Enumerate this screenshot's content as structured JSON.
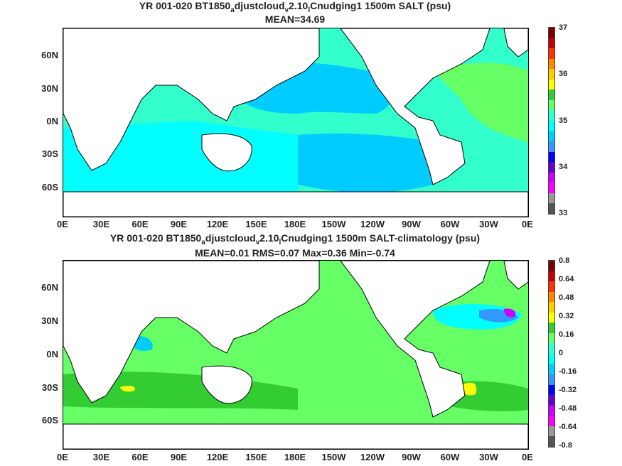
{
  "top": {
    "title_line1_parts": [
      "YR 001-020 BT1850",
      "a",
      "djustcloud",
      "v",
      "2.10",
      "l",
      "Cnudging1 1500m SALT (psu)"
    ],
    "title_line2": "MEAN=34.69",
    "colorbar_labels": [
      "37",
      "36",
      "35",
      "34",
      "33"
    ],
    "colorbar_colors": [
      "#7a0000",
      "#c80000",
      "#ff3300",
      "#ff8800",
      "#ffcc00",
      "#ffff00",
      "#33cc33",
      "#66ff66",
      "#33ffcc",
      "#00ffff",
      "#00ccff",
      "#3399ff",
      "#0000ff",
      "#6600cc",
      "#cc00ff",
      "#ff00ff",
      "#999999",
      "#555555"
    ]
  },
  "bottom": {
    "title_line1_parts": [
      "YR 001-020 BT1850",
      "a",
      "djustcloud",
      "v",
      "2.10",
      "l",
      "Cnudging1 1500m SALT-climatology (psu)"
    ],
    "title_line2": "MEAN=0.01   RMS=0.07   Max=0.36   Min=-0.74",
    "colorbar_labels": [
      "0.8",
      "0.64",
      "0.48",
      "0.32",
      "0.16",
      "0",
      "-0.16",
      "-0.32",
      "-0.48",
      "-0.64",
      "-0.8"
    ],
    "colorbar_colors": [
      "#7a0000",
      "#c80000",
      "#ff3300",
      "#ff8800",
      "#ffcc00",
      "#ffff00",
      "#33cc33",
      "#66ff66",
      "#33ffcc",
      "#00ffff",
      "#00ccff",
      "#3399ff",
      "#0000ff",
      "#6600cc",
      "#cc00ff",
      "#ff00ff",
      "#999999",
      "#555555"
    ]
  },
  "axes": {
    "y_labels": [
      "60N",
      "30N",
      "0N",
      "30S",
      "60S"
    ],
    "x_labels": [
      "0E",
      "30E",
      "60E",
      "90E",
      "120E",
      "150E",
      "180E",
      "150W",
      "120W",
      "90W",
      "60W",
      "30W",
      "0E"
    ]
  },
  "chart_data": [
    {
      "type": "heatmap",
      "title": "YR 001-020 BT1850_adjustcloud_v2.10_lCnudging1 1500m SALT (psu)",
      "subtitle": "MEAN=34.69",
      "color_range": [
        33,
        37
      ],
      "colorbar_ticks": [
        33,
        34,
        35,
        36,
        37
      ],
      "x_ticks": [
        "0E",
        "30E",
        "60E",
        "90E",
        "120E",
        "150E",
        "180E",
        "150W",
        "120W",
        "90W",
        "60W",
        "30W",
        "0E"
      ],
      "y_ticks": [
        "60N",
        "30N",
        "0N",
        "30S",
        "60S"
      ],
      "mean": 34.69
    },
    {
      "type": "heatmap",
      "title": "YR 001-020 BT1850_adjustcloud_v2.10_lCnudging1 1500m SALT-climatology (psu)",
      "subtitle": "MEAN=0.01   RMS=0.07   Max=0.36   Min=-0.74",
      "color_range": [
        -0.8,
        0.8
      ],
      "colorbar_ticks": [
        -0.8,
        -0.64,
        -0.48,
        -0.32,
        -0.16,
        0,
        0.16,
        0.32,
        0.48,
        0.64,
        0.8
      ],
      "x_ticks": [
        "0E",
        "30E",
        "60E",
        "90E",
        "120E",
        "150E",
        "180E",
        "150W",
        "120W",
        "90W",
        "60W",
        "30W",
        "0E"
      ],
      "y_ticks": [
        "60N",
        "30N",
        "0N",
        "30S",
        "60S"
      ],
      "mean": 0.01,
      "rms": 0.07,
      "max": 0.36,
      "min": -0.74
    }
  ]
}
